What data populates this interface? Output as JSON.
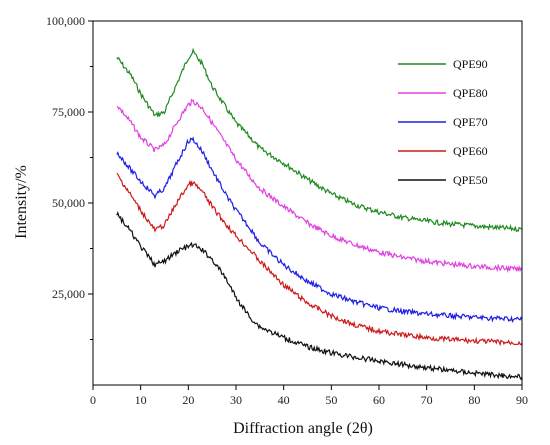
{
  "chart_data": {
    "type": "line",
    "xlabel": "Diffraction angle (2θ)",
    "ylabel": "Intensity/%",
    "xlim": [
      0,
      90
    ],
    "ylim": [
      0,
      100000
    ],
    "x_ticks": [
      0,
      10,
      20,
      30,
      40,
      50,
      60,
      70,
      80,
      90
    ],
    "y_ticks": [
      25000,
      50000,
      75000,
      100000
    ],
    "y_tick_labels": [
      "25,000",
      "50,000",
      "75,000",
      "100,000"
    ],
    "grid": false,
    "legend_position": "top-right",
    "x": [
      5,
      8,
      10,
      13,
      15,
      18,
      20,
      21,
      23,
      25,
      28,
      30,
      33,
      35,
      40,
      45,
      50,
      55,
      60,
      65,
      70,
      75,
      80,
      85,
      90
    ],
    "series": [
      {
        "name": "QPE90",
        "color": "#1f8a1f",
        "values": [
          90000,
          85000,
          80000,
          74000,
          75000,
          84000,
          90000,
          91500,
          88000,
          82000,
          76000,
          72000,
          68000,
          65000,
          61000,
          56500,
          52500,
          49500,
          47500,
          46000,
          45000,
          44200,
          43700,
          43200,
          42800
        ]
      },
      {
        "name": "QPE80",
        "color": "#e040e0",
        "values": [
          77000,
          72000,
          68000,
          64500,
          66000,
          73000,
          77000,
          78000,
          76000,
          72000,
          66000,
          62000,
          57000,
          54000,
          49000,
          44500,
          41000,
          38500,
          36500,
          35000,
          34000,
          33200,
          32600,
          32200,
          31700
        ]
      },
      {
        "name": "QPE70",
        "color": "#1e1ee6",
        "values": [
          64000,
          59000,
          56000,
          52000,
          54000,
          62000,
          67000,
          67500,
          64000,
          59000,
          52000,
          48000,
          43000,
          39000,
          33000,
          28500,
          25000,
          22800,
          21200,
          20200,
          19500,
          19000,
          18600,
          18300,
          18000
        ]
      },
      {
        "name": "QPE60",
        "color": "#cc1a1a",
        "values": [
          58000,
          52000,
          48000,
          42500,
          44000,
          51000,
          55000,
          55500,
          53000,
          49000,
          44000,
          41000,
          37000,
          34000,
          27500,
          22500,
          19000,
          16500,
          14800,
          13800,
          13000,
          12500,
          12100,
          11800,
          11500
        ]
      },
      {
        "name": "QPE50",
        "color": "#111111",
        "values": [
          47000,
          42000,
          38000,
          33000,
          34000,
          37000,
          38000,
          38500,
          37000,
          34500,
          29000,
          24000,
          18500,
          16000,
          13000,
          10500,
          8800,
          7600,
          6600,
          5600,
          4800,
          4000,
          3300,
          2700,
          2200
        ]
      }
    ]
  }
}
